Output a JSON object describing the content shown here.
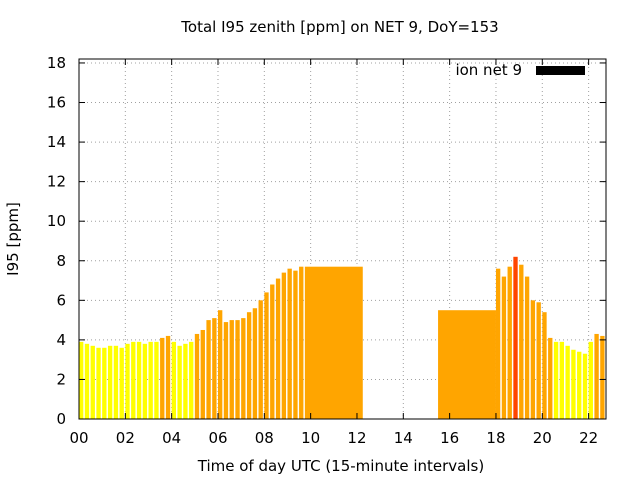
{
  "chart_data": {
    "type": "bar",
    "title": "Total I95 zenith [ppm] on NET 9, DoY=153",
    "xlabel": "Time of day UTC (15-minute intervals)",
    "ylabel": "I95 [ppm]",
    "xlim": [
      0,
      22.75
    ],
    "ylim": [
      0,
      18.2
    ],
    "x_ticks": [
      0,
      2,
      4,
      6,
      8,
      10,
      12,
      14,
      16,
      18,
      20,
      22
    ],
    "x_tick_labels": [
      "00",
      "02",
      "04",
      "06",
      "08",
      "10",
      "12",
      "14",
      "16",
      "18",
      "20",
      "22"
    ],
    "y_ticks": [
      0,
      2,
      4,
      6,
      8,
      10,
      12,
      14,
      16,
      18
    ],
    "y_tick_labels": [
      "0",
      "2",
      "4",
      "6",
      "8",
      "10",
      "12",
      "14",
      "16",
      "18"
    ],
    "grid": true,
    "legend": {
      "label": "ion net 9",
      "placement": "top-right",
      "color": "#000000"
    },
    "colors": {
      "low": "#ffff00",
      "mid": "#ffa500",
      "high": "#ff4500"
    },
    "series": [
      {
        "x": 0.0,
        "width": 0.25,
        "value": 3.9,
        "color": "#ffff00"
      },
      {
        "x": 0.25,
        "width": 0.25,
        "value": 3.8,
        "color": "#ffff00"
      },
      {
        "x": 0.5,
        "width": 0.25,
        "value": 3.7,
        "color": "#ffff00"
      },
      {
        "x": 0.75,
        "width": 0.25,
        "value": 3.6,
        "color": "#ffff00"
      },
      {
        "x": 1.0,
        "width": 0.25,
        "value": 3.6,
        "color": "#ffff00"
      },
      {
        "x": 1.25,
        "width": 0.25,
        "value": 3.7,
        "color": "#ffff00"
      },
      {
        "x": 1.5,
        "width": 0.25,
        "value": 3.7,
        "color": "#ffff00"
      },
      {
        "x": 1.75,
        "width": 0.25,
        "value": 3.6,
        "color": "#ffff00"
      },
      {
        "x": 2.0,
        "width": 0.25,
        "value": 3.8,
        "color": "#ffff00"
      },
      {
        "x": 2.25,
        "width": 0.25,
        "value": 3.9,
        "color": "#ffff00"
      },
      {
        "x": 2.5,
        "width": 0.25,
        "value": 3.9,
        "color": "#ffff00"
      },
      {
        "x": 2.75,
        "width": 0.25,
        "value": 3.8,
        "color": "#ffff00"
      },
      {
        "x": 3.0,
        "width": 0.25,
        "value": 3.9,
        "color": "#ffff00"
      },
      {
        "x": 3.25,
        "width": 0.25,
        "value": 3.9,
        "color": "#ffff00"
      },
      {
        "x": 3.5,
        "width": 0.25,
        "value": 4.1,
        "color": "#ffa500"
      },
      {
        "x": 3.75,
        "width": 0.25,
        "value": 4.2,
        "color": "#ffa500"
      },
      {
        "x": 4.0,
        "width": 0.25,
        "value": 3.9,
        "color": "#ffff00"
      },
      {
        "x": 4.25,
        "width": 0.25,
        "value": 3.7,
        "color": "#ffff00"
      },
      {
        "x": 4.5,
        "width": 0.25,
        "value": 3.8,
        "color": "#ffff00"
      },
      {
        "x": 4.75,
        "width": 0.25,
        "value": 3.9,
        "color": "#ffff00"
      },
      {
        "x": 5.0,
        "width": 0.25,
        "value": 4.3,
        "color": "#ffa500"
      },
      {
        "x": 5.25,
        "width": 0.25,
        "value": 4.5,
        "color": "#ffa500"
      },
      {
        "x": 5.5,
        "width": 0.25,
        "value": 5.0,
        "color": "#ffa500"
      },
      {
        "x": 5.75,
        "width": 0.25,
        "value": 5.1,
        "color": "#ffa500"
      },
      {
        "x": 6.0,
        "width": 0.25,
        "value": 5.5,
        "color": "#ffa500"
      },
      {
        "x": 6.25,
        "width": 0.25,
        "value": 4.9,
        "color": "#ffa500"
      },
      {
        "x": 6.5,
        "width": 0.25,
        "value": 5.0,
        "color": "#ffa500"
      },
      {
        "x": 6.75,
        "width": 0.25,
        "value": 5.0,
        "color": "#ffa500"
      },
      {
        "x": 7.0,
        "width": 0.25,
        "value": 5.1,
        "color": "#ffa500"
      },
      {
        "x": 7.25,
        "width": 0.25,
        "value": 5.4,
        "color": "#ffa500"
      },
      {
        "x": 7.5,
        "width": 0.25,
        "value": 5.6,
        "color": "#ffa500"
      },
      {
        "x": 7.75,
        "width": 0.25,
        "value": 6.0,
        "color": "#ffa500"
      },
      {
        "x": 8.0,
        "width": 0.25,
        "value": 6.4,
        "color": "#ffa500"
      },
      {
        "x": 8.25,
        "width": 0.25,
        "value": 6.8,
        "color": "#ffa500"
      },
      {
        "x": 8.5,
        "width": 0.25,
        "value": 7.1,
        "color": "#ffa500"
      },
      {
        "x": 8.75,
        "width": 0.25,
        "value": 7.4,
        "color": "#ffa500"
      },
      {
        "x": 9.0,
        "width": 0.25,
        "value": 7.6,
        "color": "#ffa500"
      },
      {
        "x": 9.25,
        "width": 0.25,
        "value": 7.5,
        "color": "#ffa500"
      },
      {
        "x": 9.5,
        "width": 0.25,
        "value": 7.7,
        "color": "#ffa500"
      },
      {
        "x": 9.75,
        "width": 2.5,
        "value": 7.7,
        "color": "#ffa500"
      },
      {
        "x": 15.5,
        "width": 2.5,
        "value": 5.5,
        "color": "#ffa500"
      },
      {
        "x": 18.0,
        "width": 0.25,
        "value": 7.6,
        "color": "#ffa500"
      },
      {
        "x": 18.25,
        "width": 0.25,
        "value": 7.2,
        "color": "#ffa500"
      },
      {
        "x": 18.5,
        "width": 0.25,
        "value": 7.7,
        "color": "#ffa500"
      },
      {
        "x": 18.75,
        "width": 0.25,
        "value": 8.2,
        "color": "#ff4500"
      },
      {
        "x": 19.0,
        "width": 0.25,
        "value": 7.8,
        "color": "#ffa500"
      },
      {
        "x": 19.25,
        "width": 0.25,
        "value": 7.2,
        "color": "#ffa500"
      },
      {
        "x": 19.5,
        "width": 0.25,
        "value": 6.0,
        "color": "#ffa500"
      },
      {
        "x": 19.75,
        "width": 0.25,
        "value": 5.9,
        "color": "#ffa500"
      },
      {
        "x": 20.0,
        "width": 0.25,
        "value": 5.4,
        "color": "#ffa500"
      },
      {
        "x": 20.25,
        "width": 0.25,
        "value": 4.1,
        "color": "#ffa500"
      },
      {
        "x": 20.5,
        "width": 0.25,
        "value": 3.9,
        "color": "#ffff00"
      },
      {
        "x": 20.75,
        "width": 0.25,
        "value": 3.9,
        "color": "#ffff00"
      },
      {
        "x": 21.0,
        "width": 0.25,
        "value": 3.7,
        "color": "#ffff00"
      },
      {
        "x": 21.25,
        "width": 0.25,
        "value": 3.5,
        "color": "#ffff00"
      },
      {
        "x": 21.5,
        "width": 0.25,
        "value": 3.4,
        "color": "#ffff00"
      },
      {
        "x": 21.75,
        "width": 0.25,
        "value": 3.3,
        "color": "#ffff00"
      },
      {
        "x": 22.0,
        "width": 0.25,
        "value": 3.9,
        "color": "#ffff00"
      },
      {
        "x": 22.25,
        "width": 0.25,
        "value": 4.3,
        "color": "#ffa500"
      },
      {
        "x": 22.5,
        "width": 0.25,
        "value": 4.2,
        "color": "#ffa500"
      }
    ]
  }
}
